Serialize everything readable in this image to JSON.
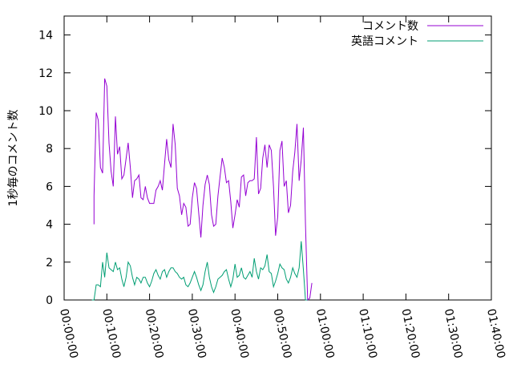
{
  "chart_data": {
    "type": "line",
    "title": "",
    "xlabel": "",
    "ylabel": "1秒毎のコメント数",
    "ylim": [
      0,
      15
    ],
    "yticks": [
      0,
      2,
      4,
      6,
      8,
      10,
      12,
      14
    ],
    "xlim_seconds": [
      0,
      6000
    ],
    "xtick_labels": [
      "00:00:00",
      "00:10:00",
      "00:20:00",
      "00:30:00",
      "00:40:00",
      "00:50:00",
      "01:00:00",
      "01:10:00",
      "01:20:00",
      "01:30:00",
      "01:40:00"
    ],
    "x_unit": "hh:mm:ss",
    "grid": false,
    "legend": "top-right",
    "series": [
      {
        "name": "コメント数",
        "color": "#9400d3",
        "points": [
          [
            "00:07:00",
            4.0
          ],
          [
            "00:07:00",
            5.5
          ],
          [
            "00:07:30",
            9.9
          ],
          [
            "00:08:00",
            9.5
          ],
          [
            "00:08:30",
            7.0
          ],
          [
            "00:09:00",
            6.7
          ],
          [
            "00:09:30",
            11.7
          ],
          [
            "00:10:00",
            11.3
          ],
          [
            "00:10:30",
            8.3
          ],
          [
            "00:11:00",
            6.8
          ],
          [
            "00:11:30",
            6.0
          ],
          [
            "00:12:00",
            9.7
          ],
          [
            "00:12:30",
            7.7
          ],
          [
            "00:13:00",
            8.1
          ],
          [
            "00:13:30",
            6.4
          ],
          [
            "00:14:00",
            6.6
          ],
          [
            "00:15:00",
            8.3
          ],
          [
            "00:15:30",
            7.0
          ],
          [
            "00:16:00",
            5.4
          ],
          [
            "00:16:30",
            6.3
          ],
          [
            "00:17:00",
            6.4
          ],
          [
            "00:17:30",
            6.6
          ],
          [
            "00:18:00",
            5.4
          ],
          [
            "00:18:30",
            5.3
          ],
          [
            "00:19:00",
            6.0
          ],
          [
            "00:19:30",
            5.4
          ],
          [
            "00:20:00",
            5.1
          ],
          [
            "00:21:00",
            5.1
          ],
          [
            "00:21:30",
            5.8
          ],
          [
            "00:22:00",
            6.0
          ],
          [
            "00:22:30",
            6.3
          ],
          [
            "00:23:00",
            5.8
          ],
          [
            "00:23:30",
            7.2
          ],
          [
            "00:24:00",
            8.5
          ],
          [
            "00:24:30",
            7.4
          ],
          [
            "00:25:00",
            7.0
          ],
          [
            "00:25:30",
            9.3
          ],
          [
            "00:26:00",
            8.2
          ],
          [
            "00:26:30",
            5.9
          ],
          [
            "00:27:00",
            5.5
          ],
          [
            "00:27:30",
            4.5
          ],
          [
            "00:28:00",
            5.1
          ],
          [
            "00:28:30",
            4.9
          ],
          [
            "00:29:00",
            3.9
          ],
          [
            "00:29:30",
            4.0
          ],
          [
            "00:30:00",
            5.4
          ],
          [
            "00:30:30",
            6.2
          ],
          [
            "00:31:00",
            5.9
          ],
          [
            "00:31:30",
            4.6
          ],
          [
            "00:32:00",
            3.3
          ],
          [
            "00:32:30",
            5.0
          ],
          [
            "00:33:00",
            6.1
          ],
          [
            "00:33:30",
            6.6
          ],
          [
            "00:34:00",
            6.1
          ],
          [
            "00:34:30",
            4.5
          ],
          [
            "00:35:00",
            3.9
          ],
          [
            "00:35:30",
            4.0
          ],
          [
            "00:36:00",
            5.5
          ],
          [
            "00:36:30",
            6.5
          ],
          [
            "00:37:00",
            7.5
          ],
          [
            "00:37:30",
            7.0
          ],
          [
            "00:38:00",
            6.2
          ],
          [
            "00:38:30",
            6.3
          ],
          [
            "00:39:00",
            5.2
          ],
          [
            "00:39:30",
            3.8
          ],
          [
            "00:40:00",
            4.5
          ],
          [
            "00:40:30",
            5.3
          ],
          [
            "00:41:00",
            4.9
          ],
          [
            "00:41:30",
            6.5
          ],
          [
            "00:42:00",
            6.6
          ],
          [
            "00:42:30",
            5.5
          ],
          [
            "00:43:00",
            6.2
          ],
          [
            "00:43:30",
            6.3
          ],
          [
            "00:44:00",
            6.3
          ],
          [
            "00:44:30",
            6.4
          ],
          [
            "00:45:00",
            8.6
          ],
          [
            "00:45:30",
            5.6
          ],
          [
            "00:46:00",
            5.9
          ],
          [
            "00:46:30",
            7.5
          ],
          [
            "00:47:00",
            8.2
          ],
          [
            "00:47:30",
            7.0
          ],
          [
            "00:48:00",
            8.2
          ],
          [
            "00:48:30",
            7.9
          ],
          [
            "00:49:00",
            6.0
          ],
          [
            "00:49:30",
            3.4
          ],
          [
            "00:50:00",
            4.4
          ],
          [
            "00:50:30",
            7.9
          ],
          [
            "00:51:00",
            8.4
          ],
          [
            "00:51:30",
            6.0
          ],
          [
            "00:52:00",
            6.3
          ],
          [
            "00:52:30",
            4.6
          ],
          [
            "00:53:00",
            5.0
          ],
          [
            "00:53:30",
            6.8
          ],
          [
            "00:54:00",
            7.8
          ],
          [
            "00:54:30",
            9.3
          ],
          [
            "00:55:00",
            6.3
          ],
          [
            "00:55:30",
            7.4
          ],
          [
            "00:56:00",
            9.1
          ],
          [
            "00:56:30",
            4.0
          ],
          [
            "00:57:00",
            0
          ],
          [
            "00:57:30",
            0.1
          ],
          [
            "00:58:00",
            0.9
          ]
        ]
      },
      {
        "name": "英語コメント",
        "color": "#009e73",
        "points": [
          [
            "00:06:30",
            0
          ],
          [
            "00:07:00",
            0.0
          ],
          [
            "00:07:30",
            0.8
          ],
          [
            "00:08:00",
            0.8
          ],
          [
            "00:08:30",
            0.7
          ],
          [
            "00:09:00",
            2.0
          ],
          [
            "00:09:30",
            1.2
          ],
          [
            "00:10:00",
            2.5
          ],
          [
            "00:10:30",
            1.7
          ],
          [
            "00:11:00",
            1.6
          ],
          [
            "00:11:30",
            1.5
          ],
          [
            "00:12:00",
            2.0
          ],
          [
            "00:12:30",
            1.6
          ],
          [
            "00:13:00",
            1.7
          ],
          [
            "00:13:30",
            1.1
          ],
          [
            "00:14:00",
            0.7
          ],
          [
            "00:14:30",
            1.2
          ],
          [
            "00:15:00",
            2.0
          ],
          [
            "00:15:30",
            1.8
          ],
          [
            "00:16:00",
            1.2
          ],
          [
            "00:16:30",
            0.8
          ],
          [
            "00:17:00",
            1.2
          ],
          [
            "00:17:30",
            1.1
          ],
          [
            "00:18:00",
            0.9
          ],
          [
            "00:18:30",
            1.2
          ],
          [
            "00:19:00",
            1.2
          ],
          [
            "00:19:30",
            0.9
          ],
          [
            "00:20:00",
            0.7
          ],
          [
            "00:20:30",
            1.0
          ],
          [
            "00:21:00",
            1.4
          ],
          [
            "00:21:30",
            1.6
          ],
          [
            "00:22:00",
            1.3
          ],
          [
            "00:22:30",
            1.1
          ],
          [
            "00:23:00",
            1.5
          ],
          [
            "00:23:30",
            1.6
          ],
          [
            "00:24:00",
            1.2
          ],
          [
            "00:24:30",
            1.5
          ],
          [
            "00:25:00",
            1.7
          ],
          [
            "00:25:30",
            1.7
          ],
          [
            "00:26:00",
            1.5
          ],
          [
            "00:26:30",
            1.4
          ],
          [
            "00:27:00",
            1.2
          ],
          [
            "00:27:30",
            1.1
          ],
          [
            "00:28:00",
            1.2
          ],
          [
            "00:28:30",
            0.8
          ],
          [
            "00:29:00",
            0.7
          ],
          [
            "00:29:30",
            0.9
          ],
          [
            "00:30:00",
            1.2
          ],
          [
            "00:30:30",
            1.5
          ],
          [
            "00:31:00",
            1.2
          ],
          [
            "00:31:30",
            0.8
          ],
          [
            "00:32:00",
            0.5
          ],
          [
            "00:32:30",
            0.8
          ],
          [
            "00:33:00",
            1.5
          ],
          [
            "00:33:30",
            2.0
          ],
          [
            "00:34:00",
            1.2
          ],
          [
            "00:34:30",
            0.7
          ],
          [
            "00:35:00",
            0.4
          ],
          [
            "00:35:30",
            0.7
          ],
          [
            "00:36:00",
            1.1
          ],
          [
            "00:36:30",
            1.2
          ],
          [
            "00:37:00",
            1.3
          ],
          [
            "00:37:30",
            1.5
          ],
          [
            "00:38:00",
            1.6
          ],
          [
            "00:38:30",
            1.1
          ],
          [
            "00:39:00",
            0.7
          ],
          [
            "00:39:30",
            1.1
          ],
          [
            "00:40:00",
            1.9
          ],
          [
            "00:40:30",
            1.2
          ],
          [
            "00:41:00",
            1.3
          ],
          [
            "00:41:30",
            1.7
          ],
          [
            "00:42:00",
            1.2
          ],
          [
            "00:42:30",
            1.1
          ],
          [
            "00:43:00",
            1.3
          ],
          [
            "00:43:30",
            1.5
          ],
          [
            "00:44:00",
            1.2
          ],
          [
            "00:44:30",
            2.2
          ],
          [
            "00:45:00",
            1.5
          ],
          [
            "00:45:30",
            1.1
          ],
          [
            "00:46:00",
            1.7
          ],
          [
            "00:46:30",
            1.6
          ],
          [
            "00:47:00",
            1.8
          ],
          [
            "00:47:30",
            2.4
          ],
          [
            "00:48:00",
            1.5
          ],
          [
            "00:48:30",
            1.4
          ],
          [
            "00:49:00",
            0.7
          ],
          [
            "00:49:30",
            1.0
          ],
          [
            "00:50:00",
            1.4
          ],
          [
            "00:50:30",
            1.9
          ],
          [
            "00:51:00",
            1.7
          ],
          [
            "00:51:30",
            1.6
          ],
          [
            "00:52:00",
            1.1
          ],
          [
            "00:52:30",
            0.9
          ],
          [
            "00:53:00",
            1.2
          ],
          [
            "00:53:30",
            1.7
          ],
          [
            "00:54:00",
            1.4
          ],
          [
            "00:54:30",
            1.2
          ],
          [
            "00:55:00",
            1.7
          ],
          [
            "00:55:30",
            3.1
          ],
          [
            "00:56:00",
            1.6
          ],
          [
            "00:56:30",
            0
          ],
          [
            "00:57:00",
            0.0
          ]
        ]
      }
    ]
  }
}
